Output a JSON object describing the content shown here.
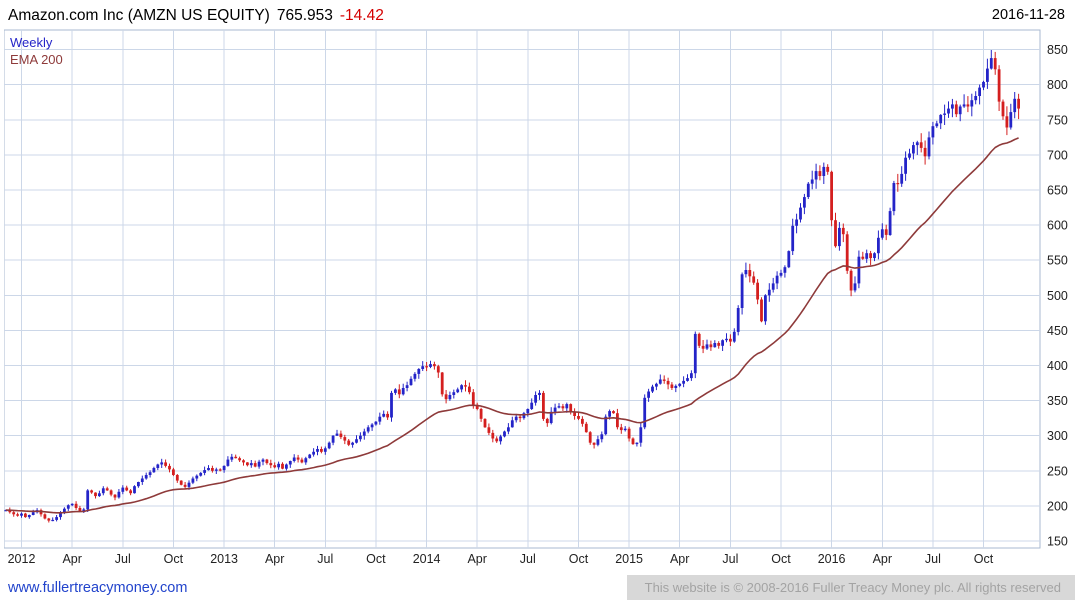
{
  "header": {
    "title": "Amazon.com Inc (AMZN US EQUITY)",
    "price": "765.953",
    "change": "-14.42",
    "date": "2016-11-28"
  },
  "legend": {
    "series1": "Weekly",
    "series2": "EMA 200"
  },
  "footer": {
    "link": "www.fullertreacymoney.com",
    "copyright": "This website is © 2008-2016 Fuller Treacy Money plc. All rights reserved"
  },
  "chart_data": {
    "type": "candlestick",
    "interval": "weekly",
    "symbol": "AMZN US EQUITY",
    "title": "Amazon.com Inc (AMZN US EQUITY) 765.953 -14.42",
    "as_of_date": "2016-11-28",
    "grid": true,
    "y_axis": {
      "side": "right",
      "min": 140,
      "max": 878,
      "ticks": [
        150,
        200,
        250,
        300,
        350,
        400,
        450,
        500,
        550,
        600,
        650,
        700,
        750,
        800,
        850
      ]
    },
    "x_axis": {
      "ticks": [
        {
          "label": "2012",
          "week": 4
        },
        {
          "label": "Apr",
          "week": 17
        },
        {
          "label": "Jul",
          "week": 30
        },
        {
          "label": "Oct",
          "week": 43
        },
        {
          "label": "2013",
          "week": 56
        },
        {
          "label": "Apr",
          "week": 69
        },
        {
          "label": "Jul",
          "week": 82
        },
        {
          "label": "Oct",
          "week": 95
        },
        {
          "label": "2014",
          "week": 108
        },
        {
          "label": "Apr",
          "week": 121
        },
        {
          "label": "Jul",
          "week": 134
        },
        {
          "label": "Oct",
          "week": 147
        },
        {
          "label": "2015",
          "week": 160
        },
        {
          "label": "Apr",
          "week": 173
        },
        {
          "label": "Jul",
          "week": 186
        },
        {
          "label": "Oct",
          "week": 199
        },
        {
          "label": "2016",
          "week": 212
        },
        {
          "label": "Apr",
          "week": 225
        },
        {
          "label": "Jul",
          "week": 238
        },
        {
          "label": "Oct",
          "week": 251
        }
      ]
    },
    "overlay": {
      "label": "EMA 200",
      "span_weeks": 40,
      "color": "#8e3a3a"
    },
    "colors": {
      "up": "#2424c8",
      "down": "#d41f1f",
      "grid": "#ccd7e8",
      "border": "#a9bad0",
      "axis_text": "#222222"
    },
    "closes": [
      194,
      191,
      188,
      186,
      189,
      184,
      187,
      191,
      194,
      188,
      182,
      179,
      180,
      184,
      190,
      196,
      201,
      203,
      197,
      192,
      195,
      222,
      219,
      214,
      218,
      225,
      222,
      216,
      212,
      220,
      226,
      222,
      218,
      228,
      234,
      239,
      244,
      248,
      254,
      259,
      262,
      257,
      252,
      244,
      236,
      230,
      227,
      233,
      239,
      243,
      247,
      251,
      254,
      250,
      252,
      251,
      257,
      266,
      270,
      268,
      265,
      262,
      258,
      261,
      256,
      263,
      266,
      261,
      258,
      255,
      260,
      253,
      259,
      264,
      269,
      266,
      262,
      268,
      273,
      277,
      281,
      277,
      282,
      290,
      300,
      303,
      298,
      293,
      287,
      290,
      295,
      300,
      306,
      312,
      316,
      320,
      327,
      331,
      326,
      361,
      366,
      359,
      368,
      372,
      381,
      388,
      395,
      399,
      398,
      402,
      399,
      390,
      359,
      352,
      358,
      362,
      366,
      372,
      370,
      362,
      344,
      338,
      324,
      312,
      304,
      296,
      292,
      299,
      306,
      312,
      322,
      327,
      325,
      332,
      338,
      347,
      358,
      361,
      324,
      318,
      334,
      340,
      342,
      339,
      345,
      333,
      328,
      324,
      317,
      305,
      290,
      287,
      295,
      302,
      327,
      335,
      332,
      312,
      308,
      310,
      296,
      288,
      290,
      312,
      354,
      363,
      370,
      374,
      380,
      378,
      373,
      368,
      371,
      374,
      378,
      382,
      389,
      445,
      428,
      424,
      430,
      426,
      432,
      428,
      436,
      438,
      434,
      448,
      482,
      530,
      536,
      527,
      518,
      494,
      463,
      500,
      508,
      517,
      528,
      532,
      540,
      563,
      599,
      608,
      625,
      640,
      659,
      665,
      677,
      670,
      683,
      676,
      607,
      570,
      596,
      587,
      535,
      507,
      517,
      555,
      552,
      560,
      553,
      560,
      582,
      594,
      586,
      620,
      660,
      659,
      673,
      696,
      702,
      714,
      718,
      710,
      698,
      725,
      741,
      745,
      757,
      759,
      766,
      772,
      758,
      769,
      772,
      769,
      778,
      784,
      796,
      804,
      823,
      838,
      822,
      776,
      755,
      739,
      761,
      780,
      766
    ]
  }
}
